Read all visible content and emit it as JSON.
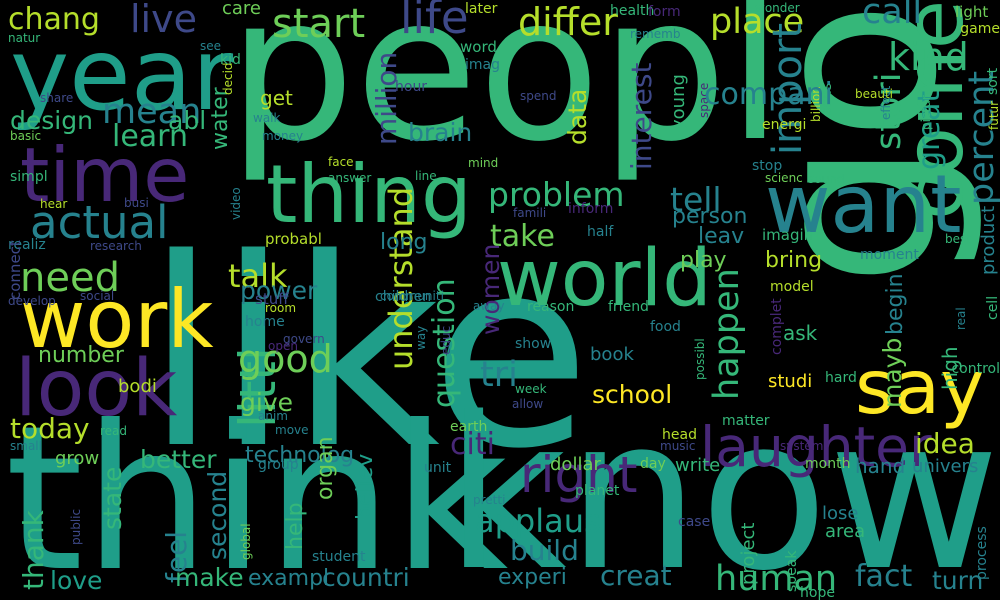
{
  "palette": {
    "background": "#000000",
    "yellow": "#fde725",
    "lightgreen": "#b5de2b",
    "green": "#6ece58",
    "seagreen": "#35b779",
    "teal": "#1f9e89",
    "steel": "#26828e",
    "blue": "#31688e",
    "indigo": "#3e4989",
    "purple": "#482878",
    "darkpurple": "#440154"
  },
  "words": [
    "peopl",
    "like",
    "go",
    "think",
    "know",
    "year",
    "time",
    "thing",
    "come",
    "want",
    "work",
    "look",
    "say",
    "world",
    "laughter",
    "right",
    "actual",
    "need",
    "chang",
    "live",
    "start",
    "life",
    "differ",
    "place",
    "call",
    "kind",
    "mean",
    "learn",
    "abl",
    "design",
    "water",
    "million",
    "get",
    "import",
    "stori",
    "great",
    "percent",
    "problem",
    "tell",
    "take",
    "data",
    "interest",
    "brain",
    "word",
    "littl",
    "talk",
    "power",
    "good",
    "give",
    "happen",
    "play",
    "person",
    "leav",
    "imagin",
    "bring",
    "question",
    "understand",
    "women",
    "long",
    "today",
    "thank",
    "number",
    "better",
    "technolog",
    "state",
    "grow",
    "feel",
    "second",
    "help",
    "believ",
    "citi",
    "applaus",
    "build",
    "idea",
    "school",
    "mayb",
    "begin",
    "high",
    "studi",
    "ask",
    "human",
    "fact",
    "make",
    "exampl",
    "countri",
    "creat",
    "experi",
    "love",
    "turn",
    "tri",
    "write",
    "hand",
    "univers",
    "month",
    "day",
    "head",
    "case",
    "dollar",
    "planet",
    "music",
    "system",
    "group",
    "organ",
    "student",
    "speak",
    "project",
    "hope",
    "area",
    "lose",
    "process",
    "global",
    "public",
    "small",
    "read",
    "educ",
    "move",
    "anim",
    "bodi",
    "allow",
    "week",
    "earth",
    "unit",
    "matter",
    "hard",
    "control",
    "cell",
    "product",
    "real",
    "complet",
    "possibl",
    "book",
    "show",
    "home",
    "open",
    "govern",
    "room",
    "stuff",
    "reason",
    "friend",
    "food",
    "away",
    "model",
    "best",
    "moment",
    "way",
    "probabl",
    "children",
    "communiti",
    "half",
    "inform",
    "famili",
    "busi",
    "research",
    "realiz",
    "develop",
    "social",
    "connect",
    "hear",
    "video",
    "simpl",
    "line",
    "answer",
    "face",
    "mind",
    "stop",
    "sound",
    "scienc",
    "futur",
    "pictur",
    "effect",
    "billion",
    "beauti",
    "game",
    "light",
    "natur",
    "share",
    "basic",
    "walk",
    "money",
    "decid",
    "kid",
    "care",
    "see",
    "later",
    "health",
    "form",
    "wonder",
    "rememb",
    "imag",
    "hour",
    "spend",
    "young",
    "space",
    "energi",
    "sens",
    "sort",
    "pretti",
    "compani",
    "point"
  ]
}
